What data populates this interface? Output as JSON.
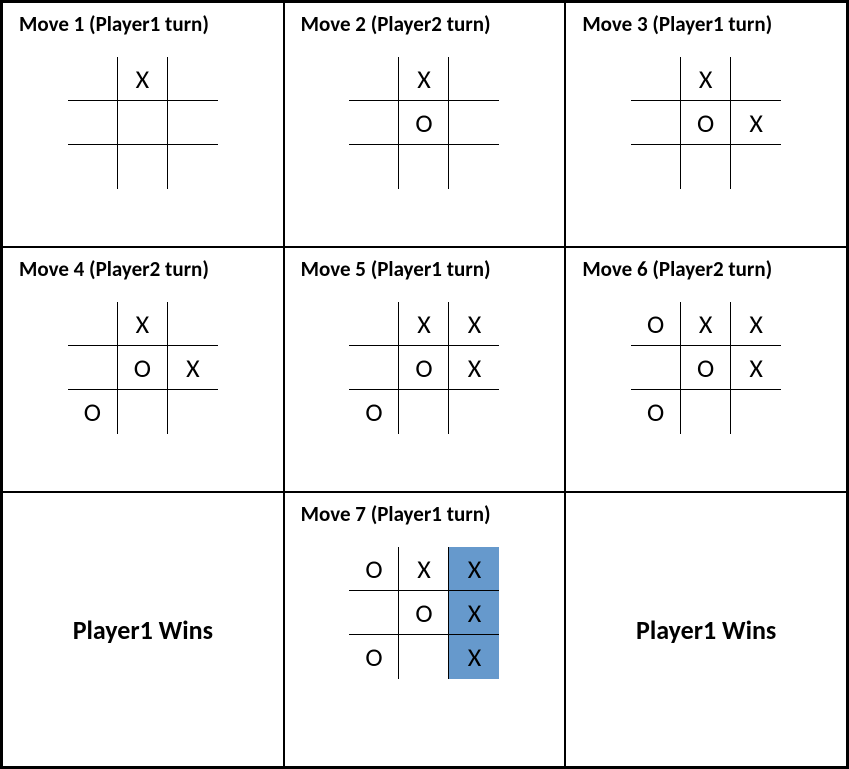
{
  "grid": {
    "cols": 3,
    "rows": 3,
    "outer_border_color": "#000000",
    "cell_border_color": "#000000",
    "background_color": "#ffffff",
    "highlight_color": "#6699cc",
    "title_fontsize": 21,
    "title_fontweight": "bold",
    "mark_fontsize": 26,
    "result_fontsize": 26,
    "result_fontweight": "bold",
    "font_family": "Calibri"
  },
  "panels": [
    {
      "type": "move",
      "title": "Move 1 (Player1 turn)",
      "board": [
        [
          "",
          "X",
          ""
        ],
        [
          "",
          "",
          ""
        ],
        [
          "",
          "",
          ""
        ]
      ],
      "highlight": []
    },
    {
      "type": "move",
      "title": "Move 2 (Player2 turn)",
      "board": [
        [
          "",
          "X",
          ""
        ],
        [
          "",
          "O",
          ""
        ],
        [
          "",
          "",
          ""
        ]
      ],
      "highlight": []
    },
    {
      "type": "move",
      "title": "Move 3 (Player1 turn)",
      "board": [
        [
          "",
          "X",
          ""
        ],
        [
          "",
          "O",
          "X"
        ],
        [
          "",
          "",
          ""
        ]
      ],
      "highlight": []
    },
    {
      "type": "move",
      "title": "Move 4 (Player2 turn)",
      "board": [
        [
          "",
          "X",
          ""
        ],
        [
          "",
          "O",
          "X"
        ],
        [
          "O",
          "",
          ""
        ]
      ],
      "highlight": []
    },
    {
      "type": "move",
      "title": "Move 5 (Player1 turn)",
      "board": [
        [
          "",
          "X",
          "X"
        ],
        [
          "",
          "O",
          "X"
        ],
        [
          "O",
          "",
          ""
        ]
      ],
      "highlight": []
    },
    {
      "type": "move",
      "title": "Move 6 (Player2 turn)",
      "board": [
        [
          "O",
          "X",
          "X"
        ],
        [
          "",
          "O",
          "X"
        ],
        [
          "O",
          "",
          ""
        ]
      ],
      "highlight": []
    },
    {
      "type": "result",
      "text": "Player1 Wins"
    },
    {
      "type": "move",
      "title": "Move 7 (Player1 turn)",
      "board": [
        [
          "O",
          "X",
          "X"
        ],
        [
          "",
          "O",
          "X"
        ],
        [
          "O",
          "",
          "X"
        ]
      ],
      "highlight": [
        [
          0,
          2
        ],
        [
          1,
          2
        ],
        [
          2,
          2
        ]
      ]
    },
    {
      "type": "result",
      "text": "Player1 Wins"
    }
  ]
}
